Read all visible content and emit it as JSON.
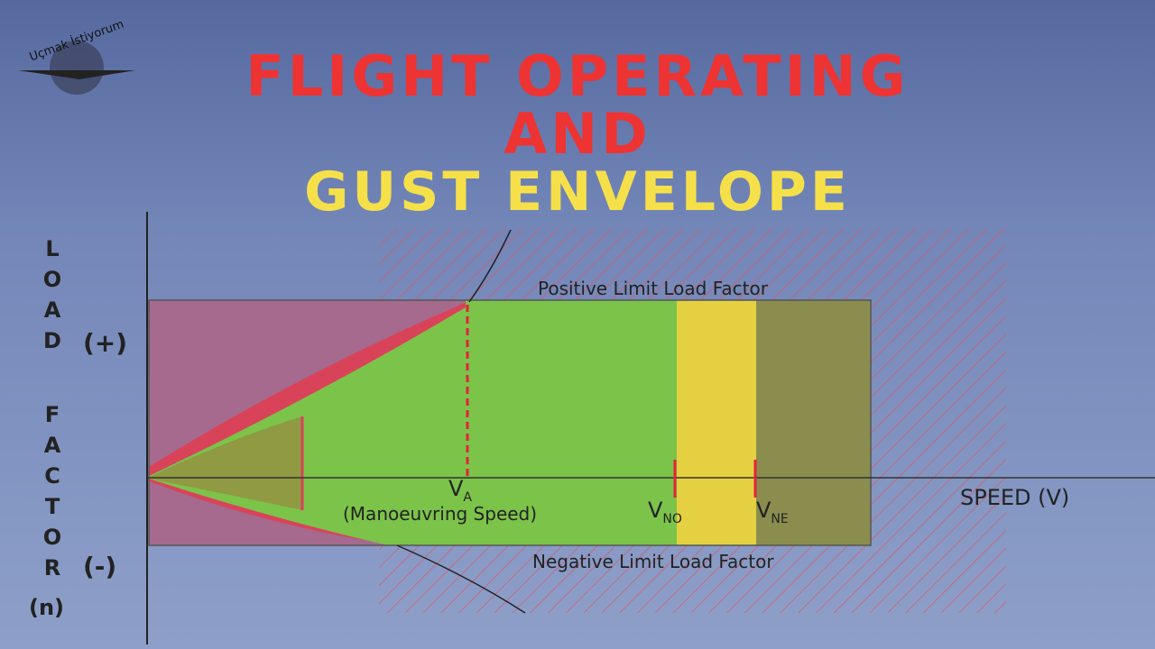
{
  "logo": "Uçmak İstiyorum",
  "title": {
    "line1": "FLIGHT OPERATING",
    "line2": "AND",
    "line3": "GUST ENVELOPE"
  },
  "y_axis": {
    "word1": "LOAD",
    "word2": "FACTOR",
    "word3": "(n)",
    "positive": "(+)",
    "negative": "(-)"
  },
  "x_axis": {
    "label": "SPEED (V)"
  },
  "limits": {
    "positive": "Positive Limit Load Factor",
    "negative": "Negative Limit Load Factor"
  },
  "speeds": {
    "va": {
      "main": "V",
      "sub": "A",
      "note": "(Manoeuvring Speed)"
    },
    "vno": {
      "main": "V",
      "sub": "NO"
    },
    "vne": {
      "main": "V",
      "sub": "NE"
    }
  }
}
